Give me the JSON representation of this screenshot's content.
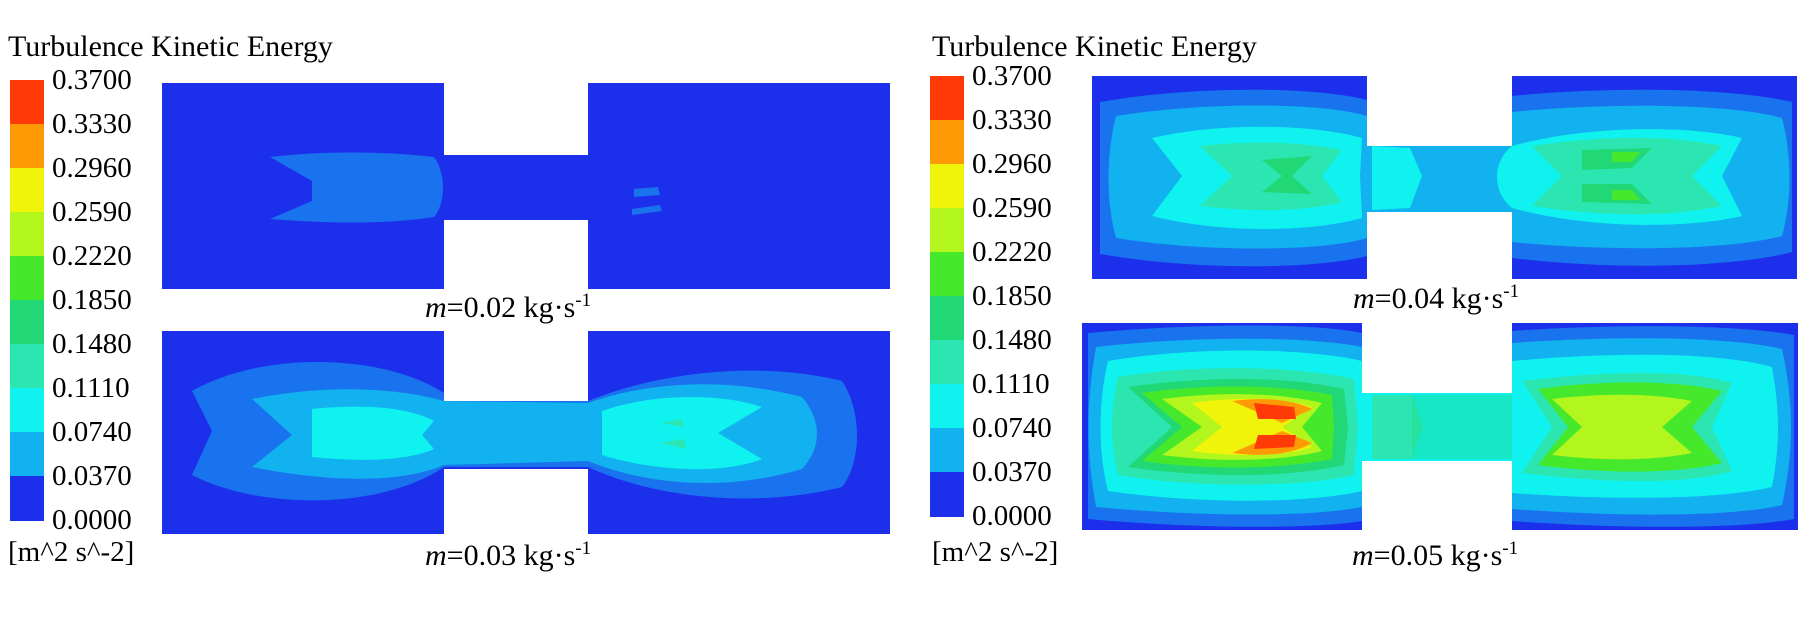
{
  "legend": {
    "title": "Turbulence Kinetic Energy",
    "units": "[m^2 s^-2]",
    "ticks": [
      "0.3700",
      "0.3330",
      "0.2960",
      "0.2590",
      "0.2220",
      "0.1850",
      "0.1480",
      "0.1110",
      "0.0740",
      "0.0370",
      "0.0000"
    ],
    "colors": [
      "#ff3a07",
      "#ff9a07",
      "#f0f40a",
      "#b2f61d",
      "#45e82b",
      "#21d776",
      "#2be6b1",
      "#10f2f0",
      "#12b1ef",
      "#1a73ee",
      "#1c30ec"
    ]
  },
  "cases": [
    {
      "var": "m",
      "value": "=0.02 kg·s",
      "exp": "-1"
    },
    {
      "var": "m",
      "value": "=0.03 kg·s",
      "exp": "-1"
    },
    {
      "var": "m",
      "value": "=0.04 kg·s",
      "exp": "-1"
    },
    {
      "var": "m",
      "value": "=0.05 kg·s",
      "exp": "-1"
    }
  ]
}
